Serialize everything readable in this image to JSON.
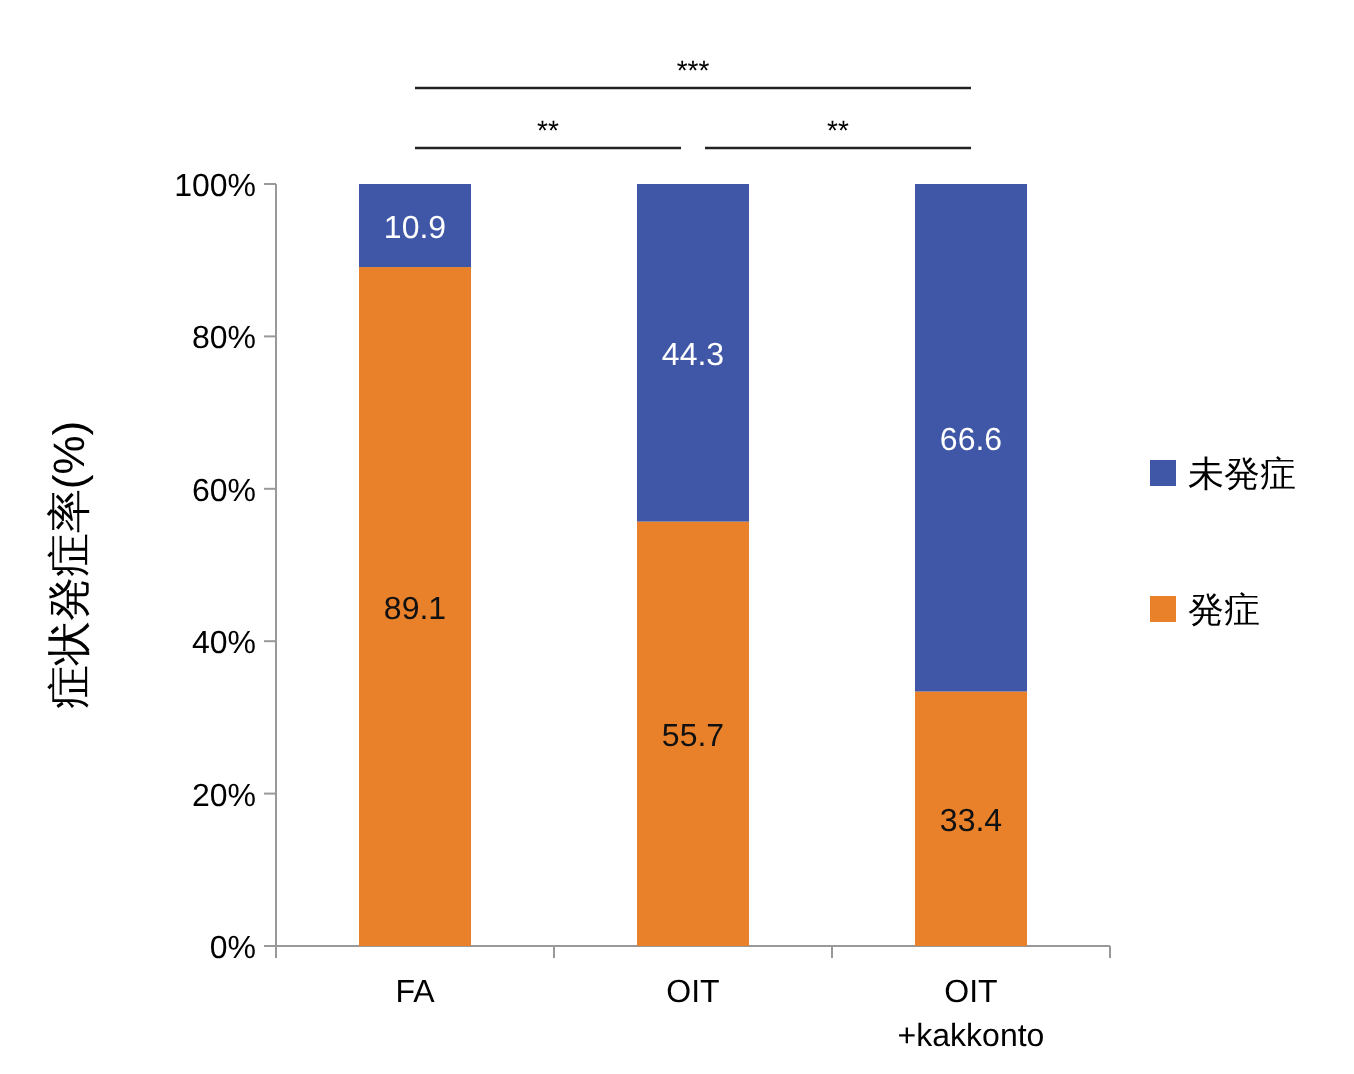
{
  "chart_data": {
    "type": "bar",
    "stacked": true,
    "ylabel": "症状発症率(%)",
    "categories": [
      "FA",
      "OIT",
      "OIT\n+kakkonto"
    ],
    "series": [
      {
        "name": "発症",
        "color": "#e8812a",
        "values": [
          89.1,
          55.7,
          33.4
        ]
      },
      {
        "name": "未発症",
        "color": "#3f57a6",
        "values": [
          10.9,
          44.3,
          66.6
        ]
      }
    ],
    "ylim": [
      0,
      100
    ],
    "yticks": [
      {
        "value": 0,
        "label": "0%"
      },
      {
        "value": 20,
        "label": "20%"
      },
      {
        "value": 40,
        "label": "40%"
      },
      {
        "value": 60,
        "label": "60%"
      },
      {
        "value": 80,
        "label": "80%"
      },
      {
        "value": 100,
        "label": "100%"
      }
    ],
    "data_labels": true,
    "grid": false,
    "legend": "right",
    "annotations": [
      "***",
      "**",
      "**"
    ]
  }
}
